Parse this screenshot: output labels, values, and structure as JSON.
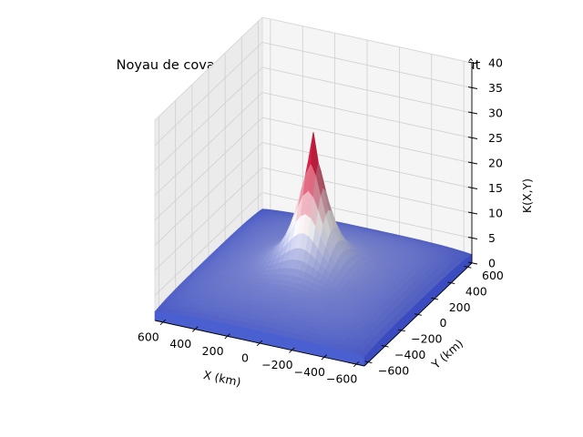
{
  "chart_data": {
    "type": "surface3d",
    "title": "Noyau de covariance spatial des précipitations en août",
    "xlabel": "X (km)",
    "ylabel": "Y (km)",
    "zlabel": "K(X,Y)",
    "xlim": [
      -650,
      650
    ],
    "ylim": [
      -650,
      650
    ],
    "zlim": [
      0,
      40
    ],
    "x_ticks": [
      -600,
      -400,
      -200,
      0,
      200,
      400,
      600
    ],
    "y_ticks": [
      -600,
      -400,
      -200,
      0,
      200,
      400,
      600
    ],
    "z_ticks": [
      0,
      5,
      10,
      15,
      20,
      25,
      30,
      35,
      40
    ],
    "x_tick_labels": [
      "−600",
      "−400",
      "−200",
      "0",
      "200",
      "400",
      "600"
    ],
    "y_tick_labels": [
      "−600",
      "−400",
      "−200",
      "0",
      "200",
      "400",
      "600"
    ],
    "z_tick_labels": [
      "0",
      "5",
      "10",
      "15",
      "20",
      "25",
      "30",
      "35",
      "40"
    ],
    "surface": {
      "x_range": [
        -650,
        650
      ],
      "y_range": [
        -650,
        650
      ],
      "peak": 28.5,
      "edge_level": 1.5,
      "colormap": "coolwarm",
      "color_min": "#3b4cc0",
      "color_mid": "#dddddd",
      "color_max": "#b40426"
    },
    "grid": true
  }
}
